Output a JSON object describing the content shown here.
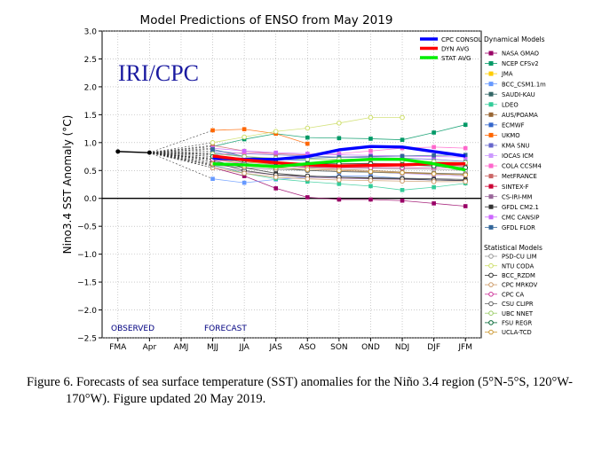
{
  "chart_data": {
    "type": "line",
    "title": "Model Predictions of ENSO from May 2019",
    "watermark": "IRI/CPC",
    "ylabel": "Nino3.4 SST Anomaly (°C)",
    "xlabel": "",
    "ylim": [
      -2.5,
      3.0
    ],
    "yticks": [
      3.0,
      2.5,
      2.0,
      1.5,
      1.0,
      0.5,
      0.0,
      -0.5,
      -1.0,
      -1.5,
      -2.0,
      -2.5
    ],
    "ytick_labels": [
      "3.0",
      "2.5",
      "2.0",
      "1.5",
      "1.0",
      "0.5",
      "0.0",
      "−0.5",
      "−1.0",
      "−1.5",
      "−2.0",
      "−2.5"
    ],
    "categories": [
      "FMA",
      "Apr",
      "AMJ",
      "MJJ",
      "JJA",
      "JAS",
      "ASO",
      "SON",
      "OND",
      "NDJ",
      "DJF",
      "JFM"
    ],
    "observed_label": "OBSERVED",
    "forecast_label": "FORECAST",
    "grid": true,
    "observed": [
      0.84,
      0.82
    ],
    "averages": [
      {
        "name": "CPC CONSOL",
        "color": "#0000ff",
        "values": [
          null,
          null,
          null,
          0.72,
          0.7,
          0.7,
          0.75,
          0.87,
          0.93,
          0.92,
          0.84,
          0.76
        ]
      },
      {
        "name": "DYN AVG",
        "color": "#ff0000",
        "values": [
          null,
          null,
          null,
          0.76,
          0.69,
          0.64,
          0.6,
          0.58,
          0.59,
          0.6,
          0.62,
          0.62
        ]
      },
      {
        "name": "STAT AVG",
        "color": "#00ee00",
        "values": [
          null,
          null,
          null,
          0.62,
          0.6,
          0.57,
          0.62,
          0.67,
          0.7,
          0.7,
          0.62,
          0.51
        ]
      }
    ],
    "dynamical_title": "Dynamical Models",
    "dynamical": [
      {
        "name": "NASA GMAO",
        "color": "#990066",
        "values": [
          null,
          null,
          null,
          0.55,
          0.4,
          0.18,
          0.02,
          -0.02,
          -0.02,
          -0.04,
          -0.09,
          -0.14
        ]
      },
      {
        "name": "NCEP CFSv2",
        "color": "#009966",
        "values": [
          null,
          null,
          null,
          0.93,
          1.06,
          1.16,
          1.09,
          1.08,
          1.07,
          1.05,
          1.18,
          1.32
        ]
      },
      {
        "name": "JMA",
        "color": "#ffcc00",
        "values": [
          null,
          null,
          null,
          0.7,
          0.65,
          0.62,
          0.6,
          null,
          null,
          null,
          null,
          null
        ]
      },
      {
        "name": "BCC_CSM1.1m",
        "color": "#6699ff",
        "values": [
          null,
          null,
          null,
          0.35,
          0.28,
          0.34,
          0.38,
          0.4,
          0.4,
          0.36,
          0.33,
          0.32
        ]
      },
      {
        "name": "SAUDI-KAU",
        "color": "#336666",
        "values": [
          null,
          null,
          null,
          0.8,
          0.63,
          0.56,
          0.5,
          0.48,
          0.47,
          0.45,
          0.44,
          0.42
        ]
      },
      {
        "name": "LDEO",
        "color": "#33cc99",
        "values": [
          null,
          null,
          null,
          0.6,
          0.45,
          0.35,
          0.3,
          0.26,
          0.22,
          0.15,
          0.2,
          0.27
        ]
      },
      {
        "name": "AUS/POAMA",
        "color": "#996633",
        "values": [
          null,
          null,
          null,
          0.75,
          0.7,
          0.6,
          0.55,
          0.52,
          0.5,
          0.47,
          0.45,
          0.42
        ]
      },
      {
        "name": "ECMWF",
        "color": "#3366cc",
        "values": [
          null,
          null,
          null,
          0.82,
          0.75,
          0.7,
          0.68,
          null,
          null,
          null,
          null,
          null
        ]
      },
      {
        "name": "UKMO",
        "color": "#ff6600",
        "values": [
          null,
          null,
          null,
          1.22,
          1.24,
          1.16,
          0.98,
          null,
          null,
          null,
          null,
          null
        ]
      },
      {
        "name": "KMA SNU",
        "color": "#6666cc",
        "values": [
          null,
          null,
          null,
          0.85,
          0.8,
          0.78,
          0.76,
          0.74,
          0.73,
          0.72,
          0.7,
          0.66
        ]
      },
      {
        "name": "IOCAS ICM",
        "color": "#cc99ff",
        "values": [
          null,
          null,
          null,
          0.65,
          0.6,
          0.55,
          0.52,
          0.5,
          0.48,
          0.45,
          0.42,
          0.4
        ]
      },
      {
        "name": "COLA CCSM4",
        "color": "#ff66cc",
        "values": [
          null,
          null,
          null,
          0.78,
          0.82,
          0.8,
          0.78,
          0.8,
          0.85,
          0.9,
          0.92,
          0.9
        ]
      },
      {
        "name": "MetFRANCE",
        "color": "#cc6666",
        "values": [
          null,
          null,
          null,
          0.95,
          0.85,
          0.8,
          0.78,
          null,
          null,
          null,
          null,
          null
        ]
      },
      {
        "name": "SINTEX-F",
        "color": "#cc0033",
        "values": [
          null,
          null,
          null,
          0.7,
          0.68,
          0.65,
          0.62,
          0.62,
          0.63,
          0.62,
          0.6,
          0.58
        ]
      },
      {
        "name": "CS-IRI-MM",
        "color": "#996699",
        "values": [
          null,
          null,
          null,
          0.58,
          0.48,
          0.42,
          0.38,
          0.36,
          0.35,
          0.34,
          0.33,
          0.32
        ]
      },
      {
        "name": "GFDL CM2.1",
        "color": "#333333",
        "values": [
          null,
          null,
          null,
          0.68,
          0.55,
          0.45,
          0.4,
          0.38,
          0.37,
          0.36,
          0.35,
          0.34
        ]
      },
      {
        "name": "CMC CANSIP",
        "color": "#cc66ff",
        "values": [
          null,
          null,
          null,
          0.9,
          0.85,
          0.82,
          0.8,
          0.78,
          0.77,
          0.76,
          0.75,
          0.74
        ]
      },
      {
        "name": "GFDL FLOR",
        "color": "#336699",
        "values": [
          null,
          null,
          null,
          0.88,
          0.75,
          0.7,
          0.72,
          0.74,
          0.75,
          0.76,
          0.77,
          0.78
        ]
      }
    ],
    "statistical_title": "Statistical Models",
    "statistical": [
      {
        "name": "PSD-CU LIM",
        "color": "#999999",
        "values": [
          null,
          null,
          null,
          0.72,
          0.65,
          0.6,
          0.57,
          0.55,
          0.54,
          0.53,
          0.52,
          0.5
        ]
      },
      {
        "name": "NTU CODA",
        "color": "#ccdd66",
        "values": [
          null,
          null,
          null,
          1.0,
          1.1,
          1.2,
          1.26,
          1.35,
          1.45,
          1.45,
          null,
          null
        ]
      },
      {
        "name": "BCC_RZDM",
        "color": "#333333",
        "values": [
          null,
          null,
          null,
          0.65,
          0.5,
          0.42,
          0.4,
          0.38,
          0.36,
          0.35,
          0.33,
          0.32
        ]
      },
      {
        "name": "CPC MRKOV",
        "color": "#cc9966",
        "values": [
          null,
          null,
          null,
          0.55,
          0.45,
          0.38,
          0.35,
          0.33,
          0.32,
          0.31,
          0.3,
          0.3
        ]
      },
      {
        "name": "CPC CA",
        "color": "#cc3399",
        "values": [
          null,
          null,
          null,
          0.7,
          0.62,
          0.58,
          0.56,
          0.55,
          0.55,
          0.55,
          0.55,
          0.55
        ]
      },
      {
        "name": "CSU CLIPR",
        "color": "#666666",
        "values": [
          null,
          null,
          null,
          0.6,
          0.55,
          0.52,
          0.5,
          0.48,
          0.47,
          0.46,
          0.45,
          0.44
        ]
      },
      {
        "name": "UBC NNET",
        "color": "#99cc66",
        "values": [
          null,
          null,
          null,
          0.8,
          0.75,
          0.72,
          0.7,
          0.7,
          0.7,
          0.68,
          0.66,
          0.64
        ]
      },
      {
        "name": "FSU REGR",
        "color": "#006633",
        "values": [
          null,
          null,
          null,
          0.75,
          0.68,
          0.64,
          0.62,
          0.62,
          0.62,
          0.6,
          0.58,
          0.55
        ]
      },
      {
        "name": "UCLA-TCD",
        "color": "#cc9933",
        "values": [
          null,
          null,
          null,
          0.62,
          0.58,
          0.55,
          0.52,
          0.5,
          0.48,
          0.46,
          0.44,
          0.42
        ]
      }
    ]
  },
  "caption": "Figure 6. Forecasts of sea surface temperature (SST) anomalies for the Niño 3.4 region (5°N-5°S, 120°W-170°W). Figure updated 20 May 2019."
}
